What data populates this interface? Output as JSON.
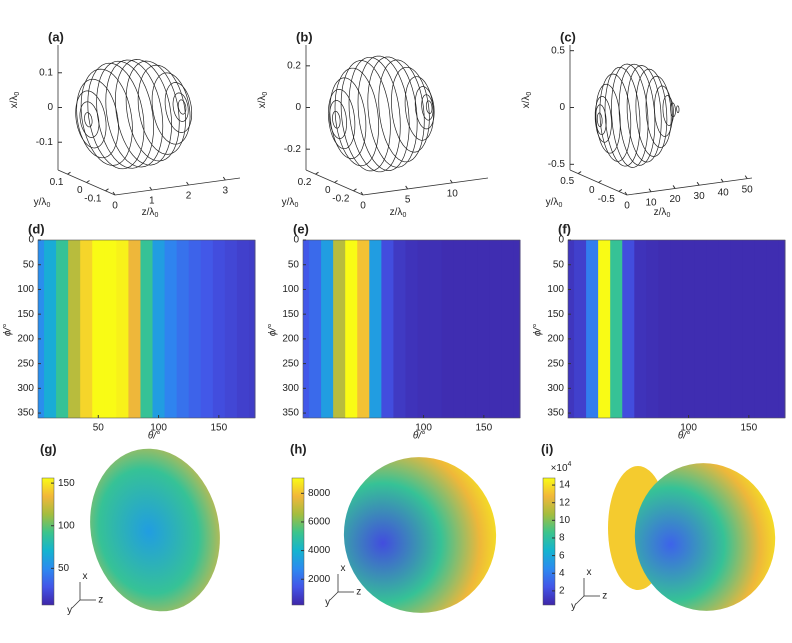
{
  "chart_data": [
    {
      "type": "trajectory3d",
      "label": "(a)",
      "xlabel": [
        "x/λ",
        "0"
      ],
      "ylabel": [
        "y/λ",
        "0"
      ],
      "zlabel": [
        "z/λ",
        "0"
      ],
      "xlim": [
        -0.18,
        0.18
      ],
      "xticks": [
        0.1,
        0,
        -0.1
      ],
      "ylim": [
        -0.15,
        0.15
      ],
      "yticks": [
        0.1,
        0,
        -0.1
      ],
      "zlim": [
        0,
        3.4
      ],
      "zticks": [
        0,
        1,
        2,
        3
      ],
      "z": [
        0.05,
        0.08,
        0.12,
        0.3,
        0.55,
        0.8,
        1.05,
        1.3,
        1.55,
        1.8,
        2.05,
        2.3,
        2.5,
        2.56,
        2.6
      ],
      "values": [
        0.02,
        0.05,
        0.08,
        0.11,
        0.135,
        0.148,
        0.15,
        0.15,
        0.148,
        0.14,
        0.125,
        0.1,
        0.07,
        0.04,
        0.02
      ],
      "color": "#222222"
    },
    {
      "type": "trajectory3d",
      "label": "(b)",
      "xlabel": [
        "x/λ",
        "0"
      ],
      "ylabel": [
        "y/λ",
        "0"
      ],
      "zlabel": [
        "z/λ",
        "0"
      ],
      "xlim": [
        -0.3,
        0.3
      ],
      "xticks": [
        0.2,
        0,
        -0.2
      ],
      "ylim": [
        -0.3,
        0.3
      ],
      "yticks": [
        0.2,
        0,
        -0.2
      ],
      "zlim": [
        0,
        14
      ],
      "zticks": [
        0,
        5,
        10
      ],
      "z": [
        0.2,
        0.4,
        0.8,
        1.5,
        2.5,
        3.5,
        4.5,
        5.5,
        6.5,
        7.5,
        8.5,
        9.5,
        10.1,
        10.4,
        10.6
      ],
      "values": [
        0.04,
        0.09,
        0.14,
        0.19,
        0.23,
        0.26,
        0.27,
        0.27,
        0.26,
        0.24,
        0.2,
        0.15,
        0.1,
        0.06,
        0.03
      ],
      "color": "#222222"
    },
    {
      "type": "trajectory3d",
      "label": "(c)",
      "xlabel": [
        "x/λ",
        "0"
      ],
      "ylabel": [
        "y/λ",
        "0"
      ],
      "zlabel": [
        "z/λ",
        "0"
      ],
      "xlim": [
        -0.55,
        0.55
      ],
      "xticks": [
        0.5,
        0,
        -0.5
      ],
      "ylim": [
        -0.7,
        0.7
      ],
      "yticks": [
        0.5,
        0,
        -0.5
      ],
      "zlim": [
        0,
        52
      ],
      "zticks": [
        0,
        10,
        20,
        30,
        40,
        50
      ],
      "z": [
        0.5,
        1,
        2,
        4,
        7,
        10,
        13,
        16,
        19,
        22,
        25,
        27,
        29,
        31,
        33
      ],
      "values": [
        0.06,
        0.13,
        0.2,
        0.3,
        0.38,
        0.43,
        0.45,
        0.44,
        0.42,
        0.38,
        0.31,
        0.22,
        0.13,
        0.06,
        0.03
      ],
      "color": "#222222"
    },
    {
      "type": "heatmap",
      "label": "(d)",
      "xlabel": "θ/°",
      "ylabel": "ϕ/°",
      "xlim": [
        0,
        180
      ],
      "xticks": [
        50,
        100,
        150
      ],
      "ylim": [
        0,
        360
      ],
      "yticks": [
        0,
        50,
        100,
        150,
        200,
        250,
        300,
        350
      ],
      "x": [
        0,
        10,
        20,
        30,
        40,
        50,
        60,
        70,
        80,
        90,
        100,
        110,
        120,
        130,
        140,
        150,
        160,
        170,
        180
      ],
      "values": [
        0.3,
        0.4,
        0.55,
        0.75,
        0.92,
        1,
        1,
        0.98,
        0.85,
        0.55,
        0.35,
        0.27,
        0.22,
        0.18,
        0.15,
        0.12,
        0.1,
        0.08,
        0.07
      ],
      "clim": [
        0,
        1
      ],
      "colormap": [
        "#3e26a8",
        "#4355e8",
        "#2c8af0",
        "#14b4cf",
        "#3cc48c",
        "#a4bd3e",
        "#f2b73a",
        "#f9fb15"
      ]
    },
    {
      "type": "heatmap",
      "label": "(e)",
      "xlabel": "θ/°",
      "ylabel": "ϕ/°",
      "xlim": [
        0,
        180
      ],
      "xticks": [
        100,
        150
      ],
      "ylim": [
        0,
        360
      ],
      "yticks": [
        0,
        50,
        100,
        150,
        200,
        250,
        300,
        350
      ],
      "x": [
        0,
        10,
        20,
        30,
        40,
        50,
        60,
        70,
        80,
        90,
        100,
        110,
        120,
        130,
        140,
        150,
        160,
        170,
        180
      ],
      "values": [
        0.15,
        0.2,
        0.35,
        0.75,
        1,
        0.88,
        0.35,
        0.12,
        0.06,
        0.04,
        0.03,
        0.03,
        0.02,
        0.02,
        0.02,
        0.02,
        0.02,
        0.02,
        0.02
      ],
      "clim": [
        0,
        1
      ],
      "colormap": [
        "#3e26a8",
        "#4355e8",
        "#2c8af0",
        "#14b4cf",
        "#3cc48c",
        "#a4bd3e",
        "#f2b73a",
        "#f9fb15"
      ]
    },
    {
      "type": "heatmap",
      "label": "(f)",
      "xlabel": "θ/°",
      "ylabel": "ϕ/°",
      "xlim": [
        0,
        180
      ],
      "xticks": [
        100,
        150
      ],
      "ylim": [
        0,
        360
      ],
      "yticks": [
        0,
        50,
        100,
        150,
        200,
        250,
        300,
        350
      ],
      "x": [
        0,
        10,
        20,
        30,
        40,
        50,
        60,
        70,
        80,
        90,
        100,
        110,
        120,
        130,
        140,
        150,
        160,
        170,
        180
      ],
      "values": [
        0.05,
        0.08,
        0.25,
        1,
        0.55,
        0.12,
        0.04,
        0.03,
        0.02,
        0.02,
        0.02,
        0.02,
        0.02,
        0.02,
        0.02,
        0.02,
        0.02,
        0.02,
        0.02
      ],
      "clim": [
        0,
        1
      ],
      "colormap": [
        "#3e26a8",
        "#4355e8",
        "#2c8af0",
        "#14b4cf",
        "#3cc48c",
        "#a4bd3e",
        "#f2b73a",
        "#f9fb15"
      ]
    },
    {
      "type": "surface",
      "label": "(g)",
      "ylim": [
        7,
        156
      ],
      "yticks": [
        50,
        100,
        150
      ],
      "axes": [
        "x",
        "y",
        "z"
      ],
      "colormap": [
        "#3e26a8",
        "#4355e8",
        "#2c8af0",
        "#14b4cf",
        "#3cc48c",
        "#a4bd3e",
        "#f2b73a",
        "#f9fb15"
      ]
    },
    {
      "type": "surface",
      "label": "(h)",
      "ylim": [
        200,
        9070
      ],
      "yticks": [
        2000,
        4000,
        6000,
        8000
      ],
      "axes": [
        "x",
        "y",
        "z"
      ],
      "colormap": [
        "#3e26a8",
        "#4355e8",
        "#2c8af0",
        "#14b4cf",
        "#3cc48c",
        "#a4bd3e",
        "#f2b73a",
        "#f9fb15"
      ]
    },
    {
      "type": "surface",
      "label": "(i)",
      "ylim": [
        0.4,
        14.8
      ],
      "yticks": [
        2,
        4,
        6,
        8,
        10,
        12,
        14
      ],
      "multiplier": [
        "×10",
        "4"
      ],
      "axes": [
        "x",
        "y",
        "z"
      ],
      "colormap": [
        "#3e26a8",
        "#4355e8",
        "#2c8af0",
        "#14b4cf",
        "#3cc48c",
        "#a4bd3e",
        "#f2b73a",
        "#f9fb15"
      ]
    }
  ]
}
